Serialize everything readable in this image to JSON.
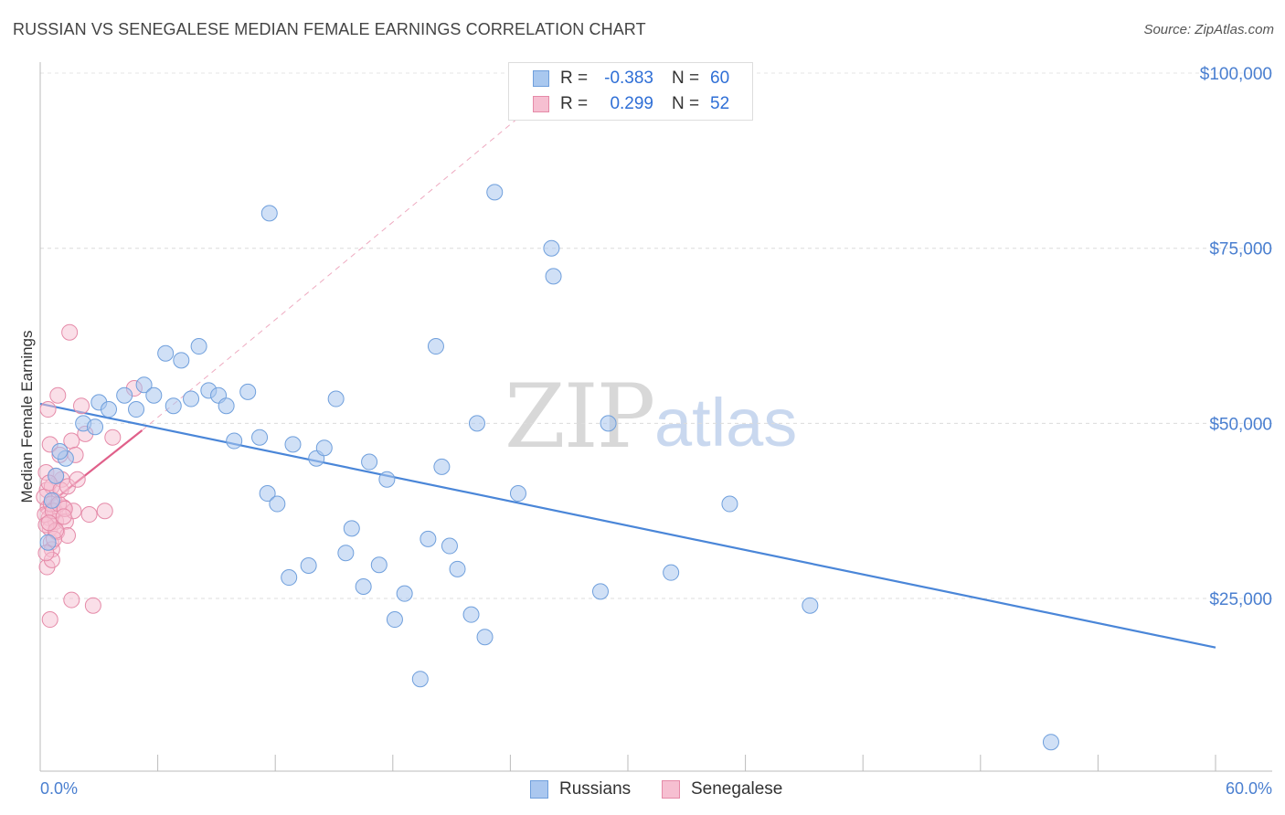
{
  "header": {
    "title": "RUSSIAN VS SENEGALESE MEDIAN FEMALE EARNINGS CORRELATION CHART",
    "source": "Source: ZipAtlas.com"
  },
  "watermark": {
    "zip": "ZIP",
    "atlas": "atlas"
  },
  "legend": {
    "rows": [
      {
        "r_label": "R =",
        "r_value": "-0.383",
        "n_label": "N =",
        "n_value": "60",
        "color": "#a9c8ef",
        "border": "#6f9fdc"
      },
      {
        "r_label": "R =",
        "r_value": "0.299",
        "n_label": "N =",
        "n_value": "52",
        "color": "#f6bfd1",
        "border": "#e58aa8"
      }
    ]
  },
  "bottom_legend": {
    "russians": "Russians",
    "senegalese": "Senegalese"
  },
  "chart_data": {
    "type": "scatter",
    "xlabel": "",
    "ylabel": "Median Female Earnings",
    "xlim": [
      0,
      60
    ],
    "ylim": [
      0,
      105000
    ],
    "x_tick_labels": [
      "0.0%",
      "60.0%"
    ],
    "y_ticks": [
      25000,
      50000,
      75000,
      100000
    ],
    "y_tick_labels": [
      "$25,000",
      "$50,000",
      "$75,000",
      "$100,000"
    ],
    "grid": "horizontal dashed",
    "legend_position": "top-center",
    "colors": {
      "russians": "#4a86d8",
      "russians_fill": "#aac7ef",
      "senegalese": "#e0608a",
      "senegalese_fill": "#f6bfd1"
    },
    "series": [
      {
        "name": "Russians",
        "points": [
          [
            0.8,
            42500
          ],
          [
            1.3,
            45000
          ],
          [
            2.2,
            50000
          ],
          [
            3.0,
            53000
          ],
          [
            3.5,
            52000
          ],
          [
            4.3,
            54000
          ],
          [
            4.9,
            52000
          ],
          [
            5.3,
            55500
          ],
          [
            5.8,
            54000
          ],
          [
            6.4,
            60000
          ],
          [
            6.8,
            52500
          ],
          [
            7.2,
            59000
          ],
          [
            7.7,
            53500
          ],
          [
            8.1,
            61000
          ],
          [
            8.6,
            54700
          ],
          [
            9.1,
            54000
          ],
          [
            9.5,
            52500
          ],
          [
            9.9,
            47500
          ],
          [
            10.6,
            54500
          ],
          [
            11.2,
            48000
          ],
          [
            11.6,
            40000
          ],
          [
            11.7,
            80000
          ],
          [
            12.1,
            38500
          ],
          [
            12.7,
            28000
          ],
          [
            12.9,
            47000
          ],
          [
            13.7,
            29700
          ],
          [
            14.1,
            45000
          ],
          [
            14.5,
            46500
          ],
          [
            15.1,
            53500
          ],
          [
            15.6,
            31500
          ],
          [
            15.9,
            35000
          ],
          [
            16.5,
            26700
          ],
          [
            16.8,
            44500
          ],
          [
            17.3,
            29800
          ],
          [
            17.7,
            42000
          ],
          [
            18.1,
            22000
          ],
          [
            18.6,
            25700
          ],
          [
            19.4,
            13500
          ],
          [
            19.8,
            33500
          ],
          [
            20.2,
            61000
          ],
          [
            20.5,
            43800
          ],
          [
            20.9,
            32500
          ],
          [
            21.3,
            29200
          ],
          [
            22.0,
            22700
          ],
          [
            22.3,
            50000
          ],
          [
            22.7,
            19500
          ],
          [
            23.2,
            83000
          ],
          [
            24.4,
            40000
          ],
          [
            26.1,
            75000
          ],
          [
            26.2,
            71000
          ],
          [
            28.6,
            26000
          ],
          [
            29.0,
            50000
          ],
          [
            32.2,
            28700
          ],
          [
            35.2,
            38500
          ],
          [
            39.3,
            24000
          ],
          [
            51.6,
            4500
          ],
          [
            1.0,
            46000
          ],
          [
            0.6,
            39000
          ],
          [
            0.4,
            33000
          ],
          [
            2.8,
            49500
          ]
        ]
      },
      {
        "name": "Senegalese",
        "points": [
          [
            0.3,
            43000
          ],
          [
            0.35,
            40500
          ],
          [
            0.4,
            38000
          ],
          [
            0.45,
            36500
          ],
          [
            0.5,
            35000
          ],
          [
            0.55,
            33000
          ],
          [
            0.6,
            32000
          ],
          [
            0.4,
            52000
          ],
          [
            0.5,
            47000
          ],
          [
            0.6,
            41000
          ],
          [
            0.7,
            39000
          ],
          [
            0.75,
            37500
          ],
          [
            0.8,
            36000
          ],
          [
            0.85,
            34500
          ],
          [
            0.9,
            54000
          ],
          [
            1.0,
            45500
          ],
          [
            1.1,
            42000
          ],
          [
            1.2,
            38000
          ],
          [
            1.3,
            36000
          ],
          [
            1.4,
            34000
          ],
          [
            0.2,
            39500
          ],
          [
            0.25,
            37000
          ],
          [
            0.3,
            35500
          ],
          [
            0.35,
            29500
          ],
          [
            0.5,
            22000
          ],
          [
            0.6,
            30500
          ],
          [
            0.7,
            33500
          ],
          [
            0.8,
            42500
          ],
          [
            1.5,
            63000
          ],
          [
            1.6,
            47500
          ],
          [
            1.7,
            37500
          ],
          [
            1.8,
            45500
          ],
          [
            2.1,
            52500
          ],
          [
            2.3,
            48500
          ],
          [
            2.5,
            37000
          ],
          [
            2.7,
            24000
          ],
          [
            1.6,
            24800
          ],
          [
            3.3,
            37500
          ],
          [
            3.7,
            48000
          ],
          [
            4.8,
            55000
          ],
          [
            0.45,
            41500
          ],
          [
            0.55,
            38500
          ],
          [
            0.65,
            37500
          ],
          [
            0.95,
            38500
          ],
          [
            1.05,
            40500
          ],
          [
            1.25,
            37800
          ],
          [
            1.4,
            41000
          ],
          [
            1.9,
            42000
          ],
          [
            0.3,
            31500
          ],
          [
            0.8,
            34700
          ],
          [
            1.2,
            36700
          ],
          [
            0.45,
            35800
          ]
        ]
      }
    ],
    "trend_lines": [
      {
        "series": "Russians",
        "from": [
          0,
          52800
        ],
        "to": [
          60,
          18000
        ],
        "style": "solid"
      },
      {
        "series": "Senegalese",
        "from": [
          0,
          37500
        ],
        "to": [
          5.2,
          49000
        ],
        "style": "solid"
      },
      {
        "series": "Senegalese",
        "from": [
          5.2,
          49000
        ],
        "to": [
          25,
          95000
        ],
        "style": "dashed"
      }
    ]
  }
}
